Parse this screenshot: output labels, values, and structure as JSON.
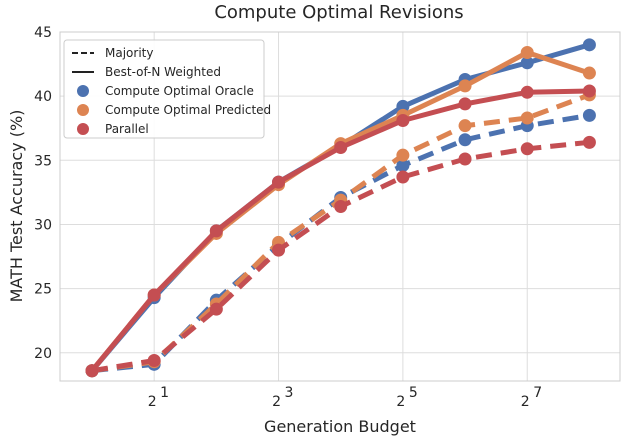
{
  "chart_data": {
    "type": "line",
    "title": "Compute Optimal Revisions",
    "xlabel": "Generation Budget",
    "ylabel": "MATH Test Accuracy (%)",
    "x_scale": "log2",
    "x": [
      1,
      2,
      4,
      8,
      16,
      32,
      64,
      128,
      256
    ],
    "xlim": [
      0.7,
      360
    ],
    "ylim": [
      17.8,
      45
    ],
    "yticks": [
      20,
      25,
      30,
      35,
      40,
      45
    ],
    "xticks": [
      {
        "value": 2,
        "base": "2",
        "exp": "1"
      },
      {
        "value": 8,
        "base": "2",
        "exp": "3"
      },
      {
        "value": 32,
        "base": "2",
        "exp": "5"
      },
      {
        "value": 128,
        "base": "2",
        "exp": "7"
      }
    ],
    "grid": true,
    "legend_position": "top-left",
    "legend": [
      {
        "label": "Majority",
        "kind": "style",
        "style": "dashed"
      },
      {
        "label": "Best-of-N Weighted",
        "kind": "style",
        "style": "solid"
      },
      {
        "label": "Compute Optimal Oracle",
        "kind": "color",
        "color": "#4c72b0"
      },
      {
        "label": "Compute Optimal Predicted",
        "kind": "color",
        "color": "#dd8452"
      },
      {
        "label": "Parallel",
        "kind": "color",
        "color": "#c44e52"
      }
    ],
    "series": [
      {
        "method": "Compute Optimal Oracle",
        "aggregation": "Majority",
        "style": "dashed",
        "color": "#4c72b0",
        "values": [
          18.6,
          19.1,
          24.1,
          28.4,
          32.1,
          34.6,
          36.6,
          37.7,
          38.5
        ]
      },
      {
        "method": "Compute Optimal Predicted",
        "aggregation": "Majority",
        "style": "dashed",
        "color": "#dd8452",
        "values": [
          18.6,
          19.3,
          23.8,
          28.6,
          31.9,
          35.4,
          37.7,
          38.3,
          40.1
        ]
      },
      {
        "method": "Parallel",
        "aggregation": "Majority",
        "style": "dashed",
        "color": "#c44e52",
        "values": [
          18.6,
          19.4,
          23.4,
          28.0,
          31.4,
          33.7,
          35.1,
          35.9,
          36.4
        ]
      },
      {
        "method": "Compute Optimal Oracle",
        "aggregation": "Best-of-N Weighted",
        "style": "solid",
        "color": "#4c72b0",
        "values": [
          18.6,
          24.3,
          29.5,
          33.3,
          36.1,
          39.2,
          41.3,
          42.6,
          44.0
        ]
      },
      {
        "method": "Compute Optimal Predicted",
        "aggregation": "Best-of-N Weighted",
        "style": "solid",
        "color": "#dd8452",
        "values": [
          18.6,
          24.5,
          29.3,
          33.1,
          36.3,
          38.5,
          40.8,
          43.4,
          41.8
        ]
      },
      {
        "method": "Parallel",
        "aggregation": "Best-of-N Weighted",
        "style": "solid",
        "color": "#c44e52",
        "values": [
          18.6,
          24.5,
          29.5,
          33.3,
          36.0,
          38.1,
          39.4,
          40.3,
          40.4
        ]
      }
    ]
  }
}
